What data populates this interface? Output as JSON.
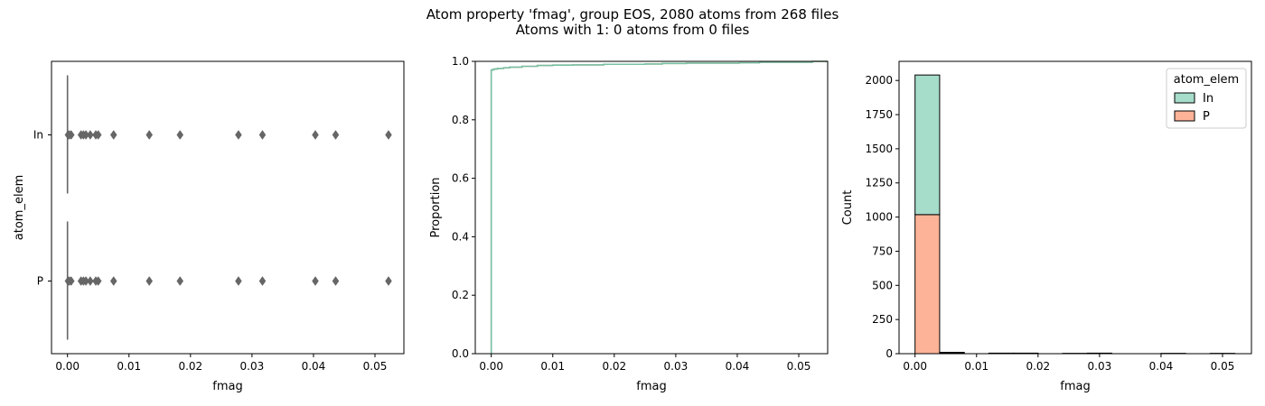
{
  "figure": {
    "title_line1": "Atom property 'fmag', group EOS, 2080 atoms from 268 files",
    "title_line2": "Atoms with 1: 0 atoms from 0 files"
  },
  "colors": {
    "In": "#66c2a5",
    "P": "#fc8d62",
    "In_fill": "#a6dcca",
    "P_fill": "#fdb397",
    "box": "#666666"
  },
  "chart_data": [
    {
      "type": "box",
      "title": "",
      "xlabel": "fmag",
      "ylabel": "atom_elem",
      "xlim": [
        -0.0026,
        0.0547
      ],
      "xticks": [
        0.0,
        0.01,
        0.02,
        0.03,
        0.04,
        0.05
      ],
      "xtick_labels": [
        "0.00",
        "0.01",
        "0.02",
        "0.03",
        "0.04",
        "0.05"
      ],
      "categories": [
        "In",
        "P"
      ],
      "series": [
        {
          "name": "In",
          "median": 0.0,
          "q1": 0.0,
          "q3": 0.0,
          "whisker_low": 0.0,
          "whisker_high": 0.0,
          "outliers": [
            0.0001,
            0.0003,
            0.0006,
            0.0022,
            0.0026,
            0.003,
            0.0037,
            0.0046,
            0.005,
            0.0075,
            0.0133,
            0.0183,
            0.0278,
            0.0317,
            0.0403,
            0.0436,
            0.0522
          ]
        },
        {
          "name": "P",
          "median": 0.0,
          "q1": 0.0,
          "q3": 0.0,
          "whisker_low": 0.0,
          "whisker_high": 0.0,
          "outliers": [
            0.0001,
            0.0003,
            0.0006,
            0.0022,
            0.0026,
            0.003,
            0.0037,
            0.0046,
            0.005,
            0.0075,
            0.0133,
            0.0183,
            0.0278,
            0.0317,
            0.0403,
            0.0436,
            0.0522
          ]
        }
      ]
    },
    {
      "type": "line",
      "title": "",
      "subtype": "ecdf",
      "xlabel": "fmag",
      "ylabel": "Proportion",
      "xlim": [
        -0.0026,
        0.0547
      ],
      "ylim": [
        0.0,
        1.0
      ],
      "xticks": [
        0.0,
        0.01,
        0.02,
        0.03,
        0.04,
        0.05
      ],
      "xtick_labels": [
        "0.00",
        "0.01",
        "0.02",
        "0.03",
        "0.04",
        "0.05"
      ],
      "yticks": [
        0.0,
        0.2,
        0.4,
        0.6,
        0.8,
        1.0
      ],
      "ytick_labels": [
        "0.0",
        "0.2",
        "0.4",
        "0.6",
        "0.8",
        "1.0"
      ],
      "series": [
        {
          "name": "In",
          "x": [
            0.0,
            0.0,
            0.0002,
            0.0005,
            0.001,
            0.002,
            0.003,
            0.005,
            0.0075,
            0.01,
            0.0133,
            0.0183,
            0.025,
            0.0278,
            0.0317,
            0.0403,
            0.0436,
            0.0522
          ],
          "y": [
            0.0,
            0.97,
            0.972,
            0.974,
            0.976,
            0.978,
            0.98,
            0.983,
            0.986,
            0.987,
            0.988,
            0.99,
            0.991,
            0.993,
            0.994,
            0.995,
            0.997,
            1.0
          ]
        },
        {
          "name": "P",
          "x": [
            0.0,
            0.0,
            0.0002,
            0.0005,
            0.001,
            0.002,
            0.003,
            0.005,
            0.0075,
            0.01,
            0.0133,
            0.0183,
            0.025,
            0.0278,
            0.0317,
            0.0403,
            0.0436,
            0.0522
          ],
          "y": [
            0.0,
            0.97,
            0.972,
            0.974,
            0.976,
            0.978,
            0.98,
            0.983,
            0.986,
            0.987,
            0.988,
            0.99,
            0.991,
            0.993,
            0.994,
            0.995,
            0.997,
            1.0
          ]
        }
      ]
    },
    {
      "type": "bar",
      "title": "",
      "subtype": "stacked-histogram",
      "xlabel": "fmag",
      "ylabel": "Count",
      "xlim": [
        -0.0026,
        0.0547
      ],
      "ylim": [
        0,
        2140
      ],
      "xticks": [
        0.0,
        0.01,
        0.02,
        0.03,
        0.04,
        0.05
      ],
      "xtick_labels": [
        "0.00",
        "0.01",
        "0.02",
        "0.03",
        "0.04",
        "0.05"
      ],
      "yticks": [
        0,
        250,
        500,
        750,
        1000,
        1250,
        1500,
        1750,
        2000
      ],
      "ytick_labels": [
        "0",
        "250",
        "500",
        "750",
        "1000",
        "1250",
        "1500",
        "1750",
        "2000"
      ],
      "bin_edges": [
        0.0,
        0.004,
        0.008,
        0.012,
        0.016,
        0.02,
        0.024,
        0.028,
        0.032,
        0.036,
        0.04,
        0.044,
        0.048,
        0.052
      ],
      "legend": {
        "title": "atom_elem",
        "placement": "top-right"
      },
      "series": [
        {
          "name": "P",
          "values": [
            1018,
            5,
            0,
            2,
            2,
            0,
            1,
            2,
            0,
            0,
            1,
            0,
            1
          ]
        },
        {
          "name": "In",
          "values": [
            1022,
            5,
            0,
            2,
            2,
            0,
            1,
            2,
            0,
            0,
            1,
            0,
            1
          ]
        }
      ]
    }
  ]
}
